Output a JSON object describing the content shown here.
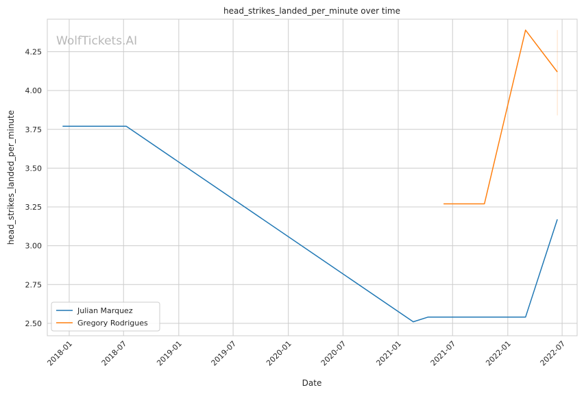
{
  "watermark": "WolfTickets.AI",
  "chart_data": {
    "type": "line",
    "title": "head_strikes_landed_per_minute over time",
    "xlabel": "Date",
    "ylabel": "head_strikes_landed_per_minute",
    "x_tick_labels": [
      "2018-01",
      "2018-07",
      "2019-01",
      "2019-07",
      "2020-01",
      "2020-07",
      "2021-01",
      "2021-07",
      "2022-01",
      "2022-07"
    ],
    "y_ticks": [
      2.5,
      2.75,
      3.0,
      3.25,
      3.5,
      3.75,
      4.0,
      4.25
    ],
    "y_tick_labels": [
      "2.50",
      "2.75",
      "3.00",
      "3.25",
      "3.50",
      "3.75",
      "4.00",
      "4.25"
    ],
    "ylim": [
      2.42,
      4.46
    ],
    "xlim": [
      "2017-10-20",
      "2022-08-20"
    ],
    "grid": true,
    "legend_position": "lower-left",
    "series": [
      {
        "name": "Julian Marquez",
        "color": "#1f77b4",
        "points": [
          {
            "x": "2017-12-10",
            "y": 3.77
          },
          {
            "x": "2018-07-10",
            "y": 3.77
          },
          {
            "x": "2021-02-20",
            "y": 2.51
          },
          {
            "x": "2021-04-10",
            "y": 2.54
          },
          {
            "x": "2022-03-01",
            "y": 2.54
          },
          {
            "x": "2022-06-15",
            "y": 3.17
          }
        ]
      },
      {
        "name": "Gregory Rodrigues",
        "color": "#ff7f0e",
        "points": [
          {
            "x": "2021-06-01",
            "y": 3.27
          },
          {
            "x": "2021-10-15",
            "y": 3.27
          },
          {
            "x": "2022-03-01",
            "y": 4.39
          },
          {
            "x": "2022-06-15",
            "y": 4.12
          }
        ],
        "error_band": {
          "x": "2022-06-15",
          "low": 3.84,
          "high": 4.39
        }
      }
    ]
  }
}
